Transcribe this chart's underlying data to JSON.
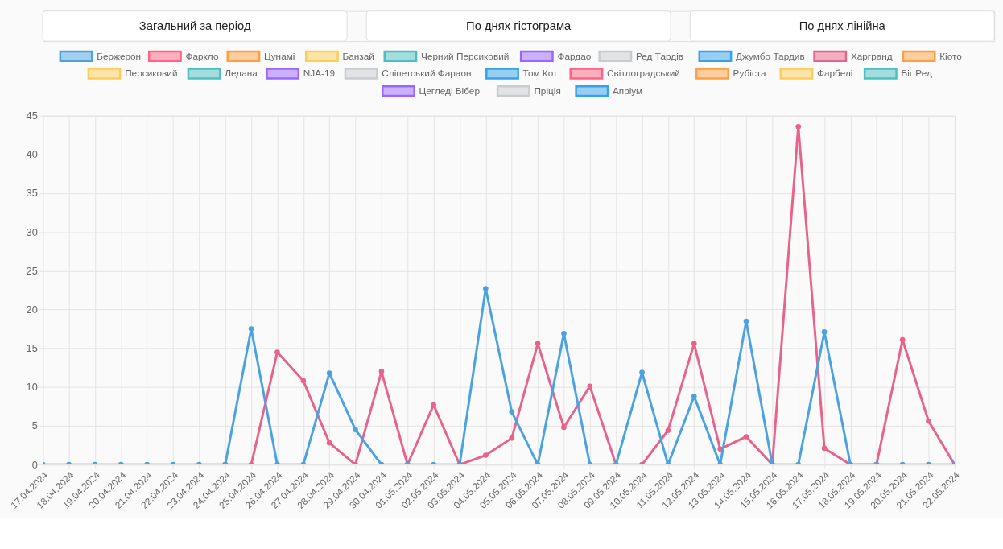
{
  "chart_data": {
    "type": "line",
    "annotations": [
      "Загальний за період",
      "По днях гістограма",
      "По днях лінійна"
    ],
    "categories": [
      "17.04.2024",
      "18.04.2024",
      "19.04.2024",
      "20.04.2024",
      "21.04.2024",
      "22.04.2024",
      "23.04.2024",
      "24.04.2024",
      "25.04.2024",
      "26.04.2024",
      "27.04.2024",
      "28.04.2024",
      "29.04.2024",
      "30.04.2024",
      "01.05.2024",
      "02.05.2024",
      "03.05.2024",
      "04.05.2024",
      "05.05.2024",
      "06.05.2024",
      "07.05.2024",
      "08.05.2024",
      "09.05.2024",
      "10.05.2024",
      "11.05.2024",
      "12.05.2024",
      "13.05.2024",
      "14.05.2024",
      "15.05.2024",
      "16.05.2024",
      "17.05.2024",
      "18.05.2024",
      "19.05.2024",
      "20.05.2024",
      "21.05.2024",
      "22.05.2024"
    ],
    "series": [
      {
        "name": "Бержерон",
        "color": "#4aa3e0",
        "values": [
          0,
          0,
          0,
          0,
          0,
          0,
          0,
          0,
          17.5,
          0,
          0,
          11.8,
          4.5,
          0,
          0,
          0,
          0,
          22.7,
          6.8,
          0,
          16.9,
          0,
          0,
          11.9,
          0,
          8.8,
          0,
          18.5,
          0,
          0,
          17.1,
          0,
          0,
          0,
          0,
          0
        ]
      },
      {
        "name": "Фаркло",
        "color": "#ff6384",
        "values": [
          null,
          null,
          null,
          null,
          null,
          null,
          null,
          null,
          null,
          null,
          null,
          null,
          null,
          null,
          null,
          null,
          null,
          null,
          null,
          null,
          null,
          null,
          null,
          null,
          null,
          null,
          null,
          null,
          null,
          null,
          null,
          null,
          null,
          null,
          null,
          null
        ]
      },
      {
        "name": "Цунамі",
        "color": "#ff9f40",
        "values": [
          null,
          null,
          null,
          null,
          null,
          null,
          null,
          null,
          null,
          null,
          null,
          null,
          null,
          null,
          null,
          null,
          null,
          null,
          null,
          null,
          null,
          null,
          null,
          null,
          null,
          null,
          null,
          null,
          null,
          null,
          null,
          null,
          null,
          null,
          null,
          null
        ]
      },
      {
        "name": "Банзай",
        "color": "#ffcd56",
        "values": [
          null,
          null,
          null,
          null,
          null,
          null,
          null,
          null,
          null,
          null,
          null,
          null,
          null,
          null,
          null,
          null,
          null,
          null,
          null,
          null,
          null,
          null,
          null,
          null,
          null,
          null,
          null,
          null,
          null,
          null,
          null,
          null,
          null,
          null,
          null,
          null
        ]
      },
      {
        "name": "Черний Персиковий",
        "color": "#4bc0c0",
        "values": [
          null,
          null,
          null,
          null,
          null,
          null,
          null,
          null,
          null,
          null,
          null,
          null,
          null,
          null,
          null,
          null,
          null,
          null,
          null,
          null,
          null,
          null,
          null,
          null,
          null,
          null,
          null,
          null,
          null,
          null,
          null,
          null,
          null,
          null,
          null,
          null
        ]
      },
      {
        "name": "Фардао",
        "color": "#9966ff",
        "values": [
          null,
          null,
          null,
          null,
          null,
          null,
          null,
          null,
          null,
          null,
          null,
          null,
          null,
          null,
          null,
          null,
          null,
          null,
          null,
          null,
          null,
          null,
          null,
          null,
          null,
          null,
          null,
          null,
          null,
          null,
          null,
          null,
          null,
          null,
          null,
          null
        ]
      },
      {
        "name": "Ред Тардів",
        "color": "#c9cbcf",
        "values": [
          null,
          null,
          null,
          null,
          null,
          null,
          null,
          null,
          null,
          null,
          null,
          null,
          null,
          null,
          null,
          null,
          null,
          null,
          null,
          null,
          null,
          null,
          null,
          null,
          null,
          null,
          null,
          null,
          null,
          null,
          null,
          null,
          null,
          null,
          null,
          null
        ]
      },
      {
        "name": "Джумбо Тардив",
        "color": "#36a2eb",
        "values": [
          null,
          null,
          null,
          null,
          null,
          null,
          null,
          null,
          null,
          null,
          null,
          null,
          null,
          null,
          null,
          null,
          null,
          null,
          null,
          null,
          null,
          null,
          null,
          null,
          null,
          null,
          null,
          null,
          null,
          null,
          null,
          null,
          null,
          null,
          null,
          null
        ]
      },
      {
        "name": "Харгранд",
        "color": "#e8638a",
        "values": [
          null,
          null,
          null,
          null,
          null,
          null,
          null,
          0,
          0,
          14.5,
          10.8,
          2.8,
          0,
          12.0,
          0,
          7.7,
          0,
          1.2,
          3.4,
          15.6,
          4.8,
          10.1,
          0,
          0,
          4.4,
          15.6,
          2.0,
          3.6,
          0,
          43.6,
          2.1,
          0,
          0,
          16.1,
          5.6,
          0
        ]
      },
      {
        "name": "Кіото",
        "color": "#ff9f40",
        "values": [
          null,
          null,
          null,
          null,
          null,
          null,
          null,
          null,
          null,
          null,
          null,
          null,
          null,
          null,
          null,
          null,
          null,
          null,
          null,
          null,
          null,
          null,
          null,
          null,
          null,
          null,
          null,
          null,
          null,
          null,
          null,
          null,
          null,
          null,
          null,
          null
        ]
      },
      {
        "name": "Персиковий",
        "color": "#ffcd56",
        "values": [
          null,
          null,
          null,
          null,
          null,
          null,
          null,
          null,
          null,
          null,
          null,
          null,
          null,
          null,
          null,
          null,
          null,
          null,
          null,
          null,
          null,
          null,
          null,
          null,
          null,
          null,
          null,
          null,
          null,
          null,
          null,
          null,
          null,
          null,
          null,
          null
        ]
      },
      {
        "name": "Ледана",
        "color": "#4bc0c0",
        "values": [
          null,
          null,
          null,
          null,
          null,
          null,
          null,
          null,
          null,
          null,
          null,
          null,
          null,
          null,
          null,
          null,
          null,
          null,
          null,
          null,
          null,
          null,
          null,
          null,
          null,
          null,
          null,
          null,
          null,
          null,
          null,
          null,
          null,
          null,
          null,
          null
        ]
      },
      {
        "name": "NJA-19",
        "color": "#9966ff",
        "values": [
          null,
          null,
          null,
          null,
          null,
          null,
          null,
          null,
          null,
          null,
          null,
          null,
          null,
          null,
          null,
          null,
          null,
          null,
          null,
          null,
          null,
          null,
          null,
          null,
          null,
          null,
          null,
          null,
          null,
          null,
          null,
          null,
          null,
          null,
          null,
          null
        ]
      },
      {
        "name": "Сліпетський Фараон",
        "color": "#c9cbcf",
        "values": [
          null,
          null,
          null,
          null,
          null,
          null,
          null,
          null,
          null,
          null,
          null,
          null,
          null,
          null,
          null,
          null,
          null,
          null,
          null,
          null,
          null,
          null,
          null,
          null,
          null,
          null,
          null,
          null,
          null,
          null,
          null,
          null,
          null,
          null,
          null,
          null
        ]
      },
      {
        "name": "Том Кот",
        "color": "#36a2eb",
        "values": [
          null,
          null,
          null,
          null,
          null,
          null,
          null,
          null,
          null,
          null,
          null,
          null,
          null,
          null,
          null,
          null,
          null,
          null,
          null,
          null,
          null,
          null,
          null,
          null,
          null,
          null,
          null,
          null,
          null,
          null,
          null,
          null,
          null,
          null,
          null,
          null
        ]
      },
      {
        "name": "Світлоградський",
        "color": "#ff6384",
        "values": [
          null,
          null,
          null,
          null,
          null,
          null,
          null,
          null,
          null,
          null,
          null,
          null,
          null,
          null,
          null,
          null,
          null,
          null,
          null,
          null,
          null,
          null,
          null,
          null,
          null,
          null,
          null,
          null,
          null,
          null,
          null,
          null,
          null,
          null,
          null,
          null
        ]
      },
      {
        "name": "Рубіста",
        "color": "#ff9f40",
        "values": [
          null,
          null,
          null,
          null,
          null,
          null,
          null,
          null,
          null,
          null,
          null,
          null,
          null,
          null,
          null,
          null,
          null,
          null,
          null,
          null,
          null,
          null,
          null,
          null,
          null,
          null,
          null,
          null,
          null,
          null,
          null,
          null,
          null,
          null,
          null,
          null
        ]
      },
      {
        "name": "Фарбелі",
        "color": "#ffcd56",
        "values": [
          null,
          null,
          null,
          null,
          null,
          null,
          null,
          null,
          null,
          null,
          null,
          null,
          null,
          null,
          null,
          null,
          null,
          null,
          null,
          null,
          null,
          null,
          null,
          null,
          null,
          null,
          null,
          null,
          null,
          null,
          null,
          null,
          null,
          null,
          null,
          null
        ]
      },
      {
        "name": "Біг Ред",
        "color": "#4bc0c0",
        "values": [
          null,
          null,
          null,
          null,
          null,
          null,
          null,
          null,
          null,
          null,
          null,
          null,
          null,
          null,
          null,
          null,
          null,
          null,
          null,
          null,
          null,
          null,
          null,
          null,
          null,
          null,
          null,
          null,
          null,
          null,
          null,
          null,
          null,
          null,
          null,
          null
        ]
      },
      {
        "name": "Цегледі Бібер",
        "color": "#9966ff",
        "values": [
          null,
          null,
          null,
          null,
          null,
          null,
          null,
          null,
          null,
          null,
          null,
          null,
          null,
          null,
          null,
          null,
          null,
          null,
          null,
          null,
          null,
          null,
          null,
          null,
          null,
          null,
          null,
          null,
          null,
          null,
          null,
          null,
          null,
          null,
          null,
          null
        ]
      },
      {
        "name": "Пріція",
        "color": "#c9cbcf",
        "values": [
          null,
          null,
          null,
          null,
          null,
          null,
          null,
          null,
          null,
          null,
          null,
          null,
          null,
          null,
          null,
          null,
          null,
          null,
          null,
          null,
          null,
          null,
          null,
          null,
          null,
          null,
          null,
          null,
          null,
          null,
          null,
          null,
          null,
          null,
          null,
          null
        ]
      },
      {
        "name": "Апріум",
        "color": "#36a2eb",
        "values": [
          null,
          null,
          null,
          null,
          null,
          null,
          null,
          null,
          null,
          null,
          null,
          null,
          null,
          null,
          null,
          null,
          null,
          null,
          null,
          null,
          null,
          null,
          null,
          null,
          null,
          null,
          null,
          null,
          null,
          null,
          null,
          null,
          null,
          null,
          null,
          null
        ]
      }
    ],
    "ylim": [
      0,
      45
    ],
    "yticks": [
      0,
      5,
      10,
      15,
      20,
      25,
      30,
      35,
      40,
      45
    ],
    "grid": true,
    "legend": "top",
    "marker": "circle",
    "line_style": "solid"
  }
}
